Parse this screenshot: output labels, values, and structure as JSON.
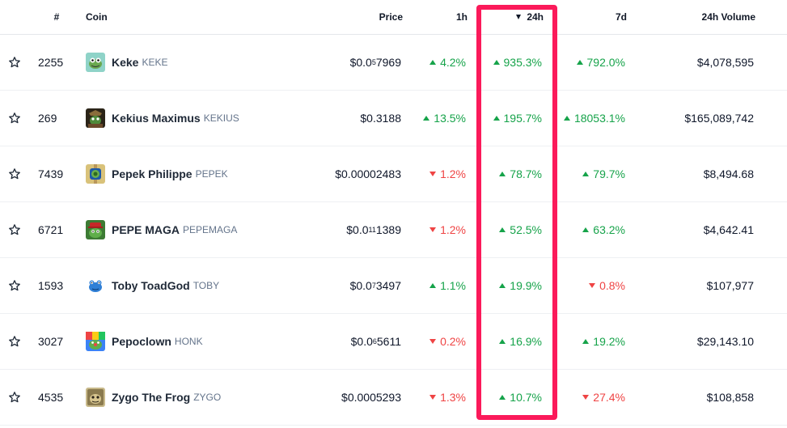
{
  "header": {
    "rank": "#",
    "coin": "Coin",
    "price": "Price",
    "h1": "1h",
    "h24": "24h",
    "d7": "7d",
    "volume": "24h Volume"
  },
  "colors": {
    "up": "#16a34a",
    "down": "#ef4444",
    "highlight": "#fb1a5a"
  },
  "rows": [
    {
      "rank": "2255",
      "name": "Keke",
      "symbol": "KEKE",
      "price_a": "$0.0",
      "price_sub": "5",
      "price_b": "7969",
      "h1": "4.2%",
      "h1_dir": "up",
      "h24": "935.3%",
      "h24_dir": "up",
      "d7": "792.0%",
      "d7_dir": "up",
      "volume": "$4,078,595",
      "icon": "keke-frog-icon"
    },
    {
      "rank": "269",
      "name": "Kekius Maximus",
      "symbol": "KEKIUS",
      "price_a": "$0.3188",
      "price_sub": "",
      "price_b": "",
      "h1": "13.5%",
      "h1_dir": "up",
      "h24": "195.7%",
      "h24_dir": "up",
      "d7": "18053.1%",
      "d7_dir": "up",
      "volume": "$165,089,742",
      "icon": "kekius-icon"
    },
    {
      "rank": "7439",
      "name": "Pepek Philippe",
      "symbol": "PEPEK",
      "price_a": "$0.00002483",
      "price_sub": "",
      "price_b": "",
      "h1": "1.2%",
      "h1_dir": "down",
      "h24": "78.7%",
      "h24_dir": "up",
      "d7": "79.7%",
      "d7_dir": "up",
      "volume": "$8,494.68",
      "icon": "watch-icon"
    },
    {
      "rank": "6721",
      "name": "PEPE MAGA",
      "symbol": "PEPEMAGA",
      "price_a": "$0.0",
      "price_sub": "11",
      "price_b": "1389",
      "h1": "1.2%",
      "h1_dir": "down",
      "h24": "52.5%",
      "h24_dir": "up",
      "d7": "63.2%",
      "d7_dir": "up",
      "volume": "$4,642.41",
      "icon": "pepe-maga-icon"
    },
    {
      "rank": "1593",
      "name": "Toby ToadGod",
      "symbol": "TOBY",
      "price_a": "$0.0",
      "price_sub": "7",
      "price_b": "3497",
      "h1": "1.1%",
      "h1_dir": "up",
      "h24": "19.9%",
      "h24_dir": "up",
      "d7": "0.8%",
      "d7_dir": "down",
      "volume": "$107,977",
      "icon": "toad-icon"
    },
    {
      "rank": "3027",
      "name": "Pepoclown",
      "symbol": "HONK",
      "price_a": "$0.0",
      "price_sub": "6",
      "price_b": "5611",
      "h1": "0.2%",
      "h1_dir": "down",
      "h24": "16.9%",
      "h24_dir": "up",
      "d7": "19.2%",
      "d7_dir": "up",
      "volume": "$29,143.10",
      "icon": "clown-icon"
    },
    {
      "rank": "4535",
      "name": "Zygo The Frog",
      "symbol": "ZYGO",
      "price_a": "$0.0005293",
      "price_sub": "",
      "price_b": "",
      "h1": "1.3%",
      "h1_dir": "down",
      "h24": "10.7%",
      "h24_dir": "up",
      "d7": "27.4%",
      "d7_dir": "down",
      "volume": "$108,858",
      "icon": "zygo-frog-icon"
    }
  ]
}
